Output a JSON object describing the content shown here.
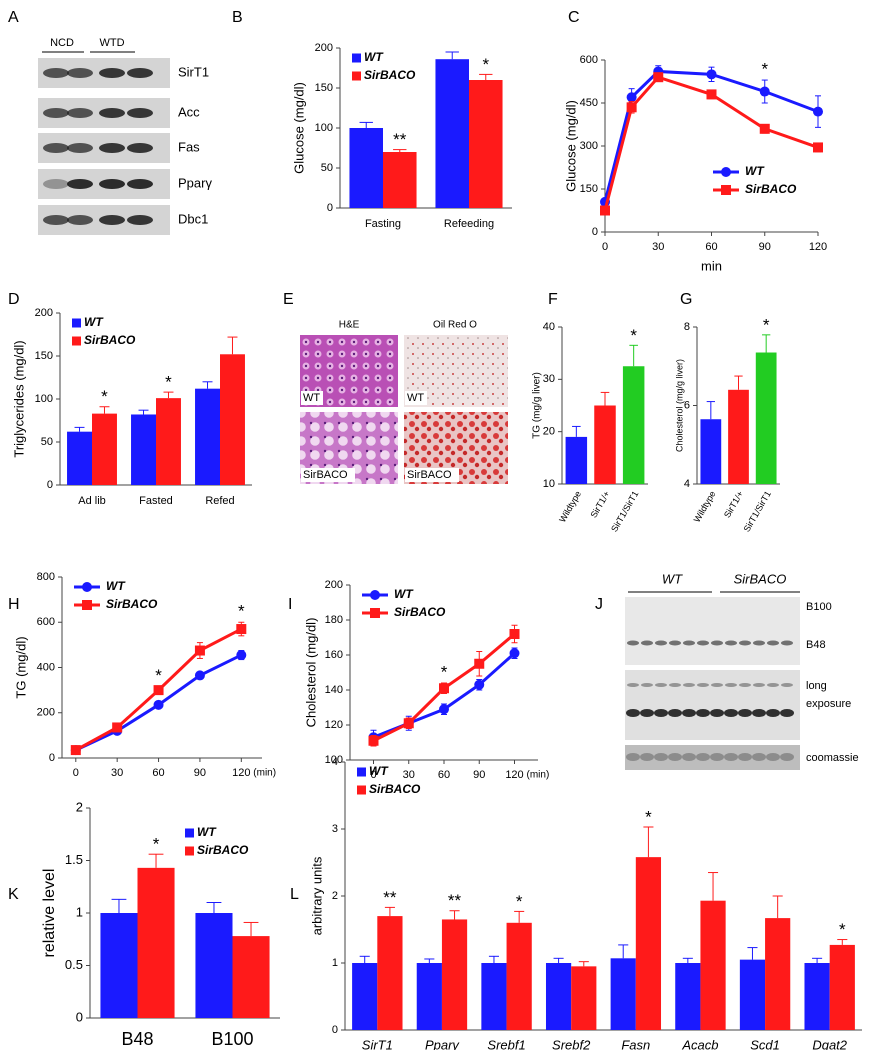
{
  "blot_a": {
    "label": "A",
    "groups": [
      "NCD",
      "WTD"
    ],
    "rows": [
      "SirT1",
      "Acc",
      "Fas",
      "Pparγ",
      "Dbc1"
    ]
  },
  "histology": {
    "label": "E",
    "columns": [
      "H&E",
      "Oil Red O"
    ],
    "tiles": [
      "WT",
      "WT",
      "SirBACO",
      "SirBACO"
    ]
  },
  "blot_j": {
    "label": "J",
    "groups": [
      "WT",
      "SirBACO"
    ],
    "rows": [
      "B100",
      "B48",
      "long",
      "exposure",
      "coomassie"
    ]
  },
  "chart_data": [
    {
      "label": "B",
      "type": "bar",
      "ylabel": "Glucose (mg/dl)",
      "categories": [
        "Fasting",
        "Refeeding"
      ],
      "series": [
        {
          "name": "WT",
          "color": "#1a1aff",
          "values": [
            100,
            186
          ],
          "errors": [
            7,
            9
          ]
        },
        {
          "name": "SirBACO",
          "color": "#ff1a1a",
          "values": [
            70,
            160
          ],
          "errors": [
            3,
            7
          ],
          "sig": [
            "**",
            "*"
          ]
        }
      ],
      "ylim": [
        0,
        200
      ],
      "yticks": [
        0,
        50,
        100,
        150,
        200
      ],
      "legend": "upper left"
    },
    {
      "label": "C",
      "type": "line",
      "ylabel": "Glucose (mg/dl)",
      "xlabel": "min",
      "x": [
        0,
        15,
        30,
        60,
        90,
        120
      ],
      "series": [
        {
          "name": "WT",
          "color": "#1a1aff",
          "marker": "circle",
          "values": [
            105,
            470,
            560,
            550,
            490,
            420
          ],
          "errors": [
            10,
            30,
            20,
            25,
            40,
            55
          ],
          "sig": [
            null,
            null,
            null,
            null,
            "*",
            null
          ]
        },
        {
          "name": "SirBACO",
          "color": "#ff1a1a",
          "marker": "square",
          "values": [
            75,
            435,
            540,
            480,
            360,
            295
          ],
          "errors": [
            10,
            20,
            15,
            15,
            15,
            15
          ]
        }
      ],
      "xlim": [
        0,
        120
      ],
      "xticks": [
        0,
        30,
        60,
        90,
        120
      ],
      "ylim": [
        0,
        600
      ],
      "yticks": [
        0,
        150,
        300,
        450,
        600
      ],
      "legend": "lower right"
    },
    {
      "label": "D",
      "type": "bar",
      "ylabel": "Triglycerides (mg/dl)",
      "categories": [
        "Ad lib",
        "Fasted",
        "Refed"
      ],
      "series": [
        {
          "name": "WT",
          "color": "#1a1aff",
          "values": [
            62,
            82,
            112
          ],
          "errors": [
            5,
            5,
            8
          ]
        },
        {
          "name": "SirBACO",
          "color": "#ff1a1a",
          "values": [
            83,
            101,
            152
          ],
          "errors": [
            8,
            7,
            20
          ],
          "sig": [
            "*",
            "*",
            null
          ]
        }
      ],
      "ylim": [
        0,
        200
      ],
      "yticks": [
        0,
        50,
        100,
        150,
        200
      ],
      "legend": "upper left"
    },
    {
      "label": "F",
      "type": "bar",
      "ylabel": "TG (mg/g liver)",
      "categories": [
        "Wildtype",
        "SirT1/+",
        "SirT1/SirT1"
      ],
      "values": [
        19,
        25,
        32.5
      ],
      "errors": [
        2,
        2.5,
        4
      ],
      "colors": [
        "#1a1aff",
        "#ff1a1a",
        "#22cc22"
      ],
      "sig": [
        null,
        null,
        "*"
      ],
      "ylim": [
        10,
        40
      ],
      "yticks": [
        10,
        20,
        30,
        40
      ]
    },
    {
      "label": "G",
      "type": "bar",
      "ylabel": "Cholesterol (mg/g liver)",
      "categories": [
        "Wildtype",
        "SirT1/+",
        "SirT1/SirT1"
      ],
      "values": [
        5.65,
        6.4,
        7.35
      ],
      "errors": [
        0.45,
        0.35,
        0.45
      ],
      "colors": [
        "#1a1aff",
        "#ff1a1a",
        "#22cc22"
      ],
      "sig": [
        null,
        null,
        "*"
      ],
      "ylim": [
        4,
        8
      ],
      "yticks": [
        4,
        6,
        8
      ]
    },
    {
      "label": "H",
      "type": "line",
      "ylabel": "TG (mg/dl)",
      "xlabel": "(min)",
      "x": [
        0,
        30,
        60,
        90,
        120
      ],
      "series": [
        {
          "name": "WT",
          "color": "#1a1aff",
          "marker": "circle",
          "values": [
            35,
            120,
            235,
            365,
            455
          ],
          "errors": [
            5,
            10,
            10,
            15,
            20
          ]
        },
        {
          "name": "SirBACO",
          "color": "#ff1a1a",
          "marker": "square",
          "values": [
            35,
            135,
            300,
            475,
            570
          ],
          "errors": [
            5,
            10,
            15,
            35,
            30
          ],
          "sig": [
            null,
            null,
            "*",
            null,
            "*"
          ]
        }
      ],
      "xlim": [
        -10,
        135
      ],
      "xticks": [
        0,
        30,
        60,
        90,
        120
      ],
      "ylim": [
        0,
        800
      ],
      "yticks": [
        0,
        200,
        400,
        600,
        800
      ],
      "legend": "upper left"
    },
    {
      "label": "I",
      "type": "line",
      "ylabel": "Cholesterol (mg/dl)",
      "xlabel": "(min)",
      "x": [
        0,
        30,
        60,
        90,
        120
      ],
      "series": [
        {
          "name": "WT",
          "color": "#1a1aff",
          "marker": "circle",
          "values": [
            113,
            121,
            129,
            143,
            161
          ],
          "errors": [
            4,
            4,
            3,
            3,
            3
          ]
        },
        {
          "name": "SirBACO",
          "color": "#ff1a1a",
          "marker": "square",
          "values": [
            111,
            121,
            141,
            155,
            172
          ],
          "errors": [
            3,
            3,
            3,
            7,
            5
          ],
          "sig": [
            null,
            null,
            "*",
            null,
            null
          ]
        }
      ],
      "xlim": [
        -20,
        140
      ],
      "xticks": [
        0,
        30,
        60,
        90,
        120
      ],
      "ylim": [
        100,
        200
      ],
      "yticks": [
        100,
        120,
        140,
        160,
        180,
        200
      ],
      "legend": "upper left"
    },
    {
      "label": "K",
      "type": "bar",
      "ylabel": "relative level",
      "categories": [
        "B48",
        "B100"
      ],
      "series": [
        {
          "name": "WT",
          "color": "#1a1aff",
          "values": [
            1,
            1
          ],
          "errors": [
            0.13,
            0.1
          ]
        },
        {
          "name": "SirBACO",
          "color": "#ff1a1a",
          "values": [
            1.43,
            0.78
          ],
          "errors": [
            0.13,
            0.13
          ],
          "sig": [
            "*",
            null
          ]
        }
      ],
      "ylim": [
        0,
        2
      ],
      "yticks": [
        0,
        0.5,
        1,
        1.5,
        2
      ],
      "legend": "upper right"
    },
    {
      "label": "L",
      "type": "bar",
      "ylabel": "arbitrary units",
      "categories": [
        "SirT1",
        "Pparγ",
        "Srebf1",
        "Srebf2",
        "Fasn",
        "Acacb",
        "Scd1",
        "Dgat2"
      ],
      "series": [
        {
          "name": "WT",
          "color": "#1a1aff",
          "values": [
            1,
            1,
            1,
            1,
            1.07,
            1,
            1.05,
            1
          ],
          "errors": [
            0.1,
            0.06,
            0.1,
            0.07,
            0.2,
            0.07,
            0.18,
            0.07
          ]
        },
        {
          "name": "SirBACO",
          "color": "#ff1a1a",
          "values": [
            1.7,
            1.65,
            1.6,
            0.95,
            2.58,
            1.93,
            1.67,
            1.27
          ],
          "errors": [
            0.13,
            0.13,
            0.17,
            0.07,
            0.45,
            0.42,
            0.33,
            0.08
          ],
          "sig": [
            "**",
            "**",
            "*",
            null,
            "*",
            null,
            null,
            "*"
          ]
        }
      ],
      "ylim": [
        0,
        4
      ],
      "yticks": [
        0,
        1,
        2,
        3,
        4
      ],
      "legend": "upper left"
    }
  ]
}
